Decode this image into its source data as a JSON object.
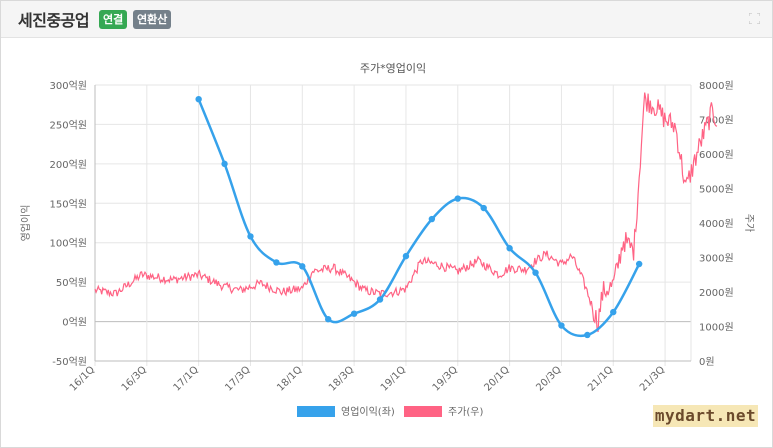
{
  "header": {
    "company": "세진중공업",
    "badge_consolidated": "연결",
    "badge_annualized": "연환산"
  },
  "watermark": "mydart.net",
  "chart_data": {
    "type": "line",
    "title": "주가*영업이익",
    "categories": [
      "16/1Q",
      "16/3Q",
      "17/1Q",
      "17/3Q",
      "18/1Q",
      "18/3Q",
      "19/1Q",
      "19/3Q",
      "20/1Q",
      "20/3Q",
      "21/1Q",
      "21/3Q"
    ],
    "left_axis": {
      "label": "영업이익",
      "min": -50,
      "max": 300,
      "ticks": [
        "-50억원",
        "0억원",
        "50억원",
        "100억원",
        "150억원",
        "200억원",
        "250억원",
        "300억원"
      ]
    },
    "right_axis": {
      "label": "주가",
      "min": 0,
      "max": 8000,
      "ticks": [
        "0원",
        "1000원",
        "2000원",
        "3000원",
        "4000원",
        "5000원",
        "6000원",
        "7000원",
        "8000원"
      ]
    },
    "grid": true,
    "legend_position": "bottom",
    "series": [
      {
        "name": "영업이익(좌)",
        "axis": "left",
        "color": "#36a2eb",
        "x": [
          "17/1Q",
          "17/2Q",
          "17/3Q",
          "17/4Q",
          "18/1Q",
          "18/2Q",
          "18/3Q",
          "18/4Q",
          "19/1Q",
          "19/2Q",
          "19/3Q",
          "19/4Q",
          "20/1Q",
          "20/2Q",
          "20/3Q",
          "20/4Q",
          "21/1Q",
          "21/2Q"
        ],
        "values": [
          282,
          200,
          108,
          75,
          70,
          3,
          10,
          28,
          83,
          130,
          156,
          144,
          93,
          62,
          -5,
          -17,
          12,
          73
        ]
      },
      {
        "name": "주가(우)",
        "axis": "right",
        "color": "#ff6384",
        "keyframes_t": [
          0,
          0.4,
          0.9,
          1.5,
          2.0,
          2.5,
          2.8,
          3.2,
          3.6,
          4.0,
          4.2,
          4.6,
          4.9,
          5.2,
          5.5,
          5.8,
          6.0,
          6.3,
          6.6,
          7.0,
          7.4,
          7.8,
          8.0,
          8.3,
          8.5,
          8.7,
          9.0,
          9.2,
          9.4,
          9.5,
          9.7,
          9.8,
          10.0,
          10.2,
          10.4,
          10.6,
          10.8,
          11.0,
          11.2,
          11.4,
          11.7,
          11.9,
          12.0
        ],
        "keyframes_v": [
          2050,
          1950,
          2500,
          2350,
          2500,
          2150,
          2050,
          2250,
          2000,
          2100,
          2600,
          2700,
          2400,
          2050,
          1950,
          2000,
          2100,
          2900,
          2800,
          2600,
          2900,
          2500,
          2700,
          2650,
          2900,
          3100,
          2800,
          3050,
          2400,
          2000,
          1100,
          2000,
          2200,
          3500,
          3200,
          7600,
          7400,
          7000,
          6800,
          5000,
          6400,
          7200,
          7000
        ]
      }
    ]
  }
}
